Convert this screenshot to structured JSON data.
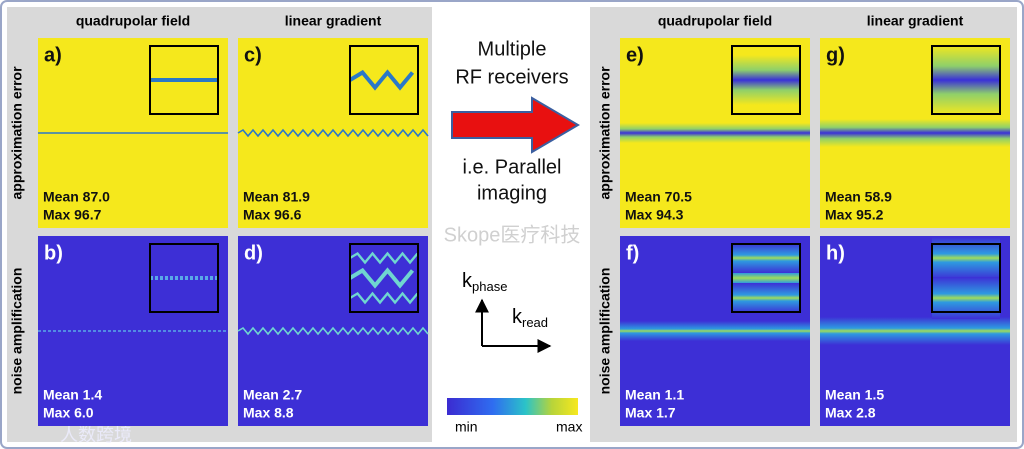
{
  "left": {
    "columns": [
      "quadrupolar field",
      "linear gradient"
    ],
    "rows": [
      "approximation error",
      "noise amplification"
    ],
    "panels": [
      {
        "label": "a)",
        "mean": "Mean 87.0",
        "max": "Max 96.7"
      },
      {
        "label": "c)",
        "mean": "Mean 81.9",
        "max": "Max 96.6"
      },
      {
        "label": "b)",
        "mean": "Mean 1.4",
        "max": "Max 6.0"
      },
      {
        "label": "d)",
        "mean": "Mean 2.7",
        "max": "Max 8.8"
      }
    ]
  },
  "right": {
    "columns": [
      "quadrupolar field",
      "linear gradient"
    ],
    "rows": [
      "approximation error",
      "noise amplification"
    ],
    "panels": [
      {
        "label": "e)",
        "mean": "Mean 70.5",
        "max": "Max 94.3"
      },
      {
        "label": "g)",
        "mean": "Mean 58.9",
        "max": "Max 95.2"
      },
      {
        "label": "f)",
        "mean": "Mean 1.1",
        "max": "Max 1.7"
      },
      {
        "label": "h)",
        "mean": "Mean 1.5",
        "max": "Max 2.8"
      }
    ]
  },
  "center": {
    "top": [
      "Multiple",
      "RF receivers"
    ],
    "bottom": [
      "i.e. Parallel",
      "imaging"
    ],
    "k_phase": {
      "k": "k",
      "sub": "phase"
    },
    "k_read": {
      "k": "k",
      "sub": "read"
    },
    "colorbar": {
      "min": "min",
      "max": "max"
    }
  },
  "watermarks": [
    "Skope医疗科技",
    "人数跨境"
  ]
}
